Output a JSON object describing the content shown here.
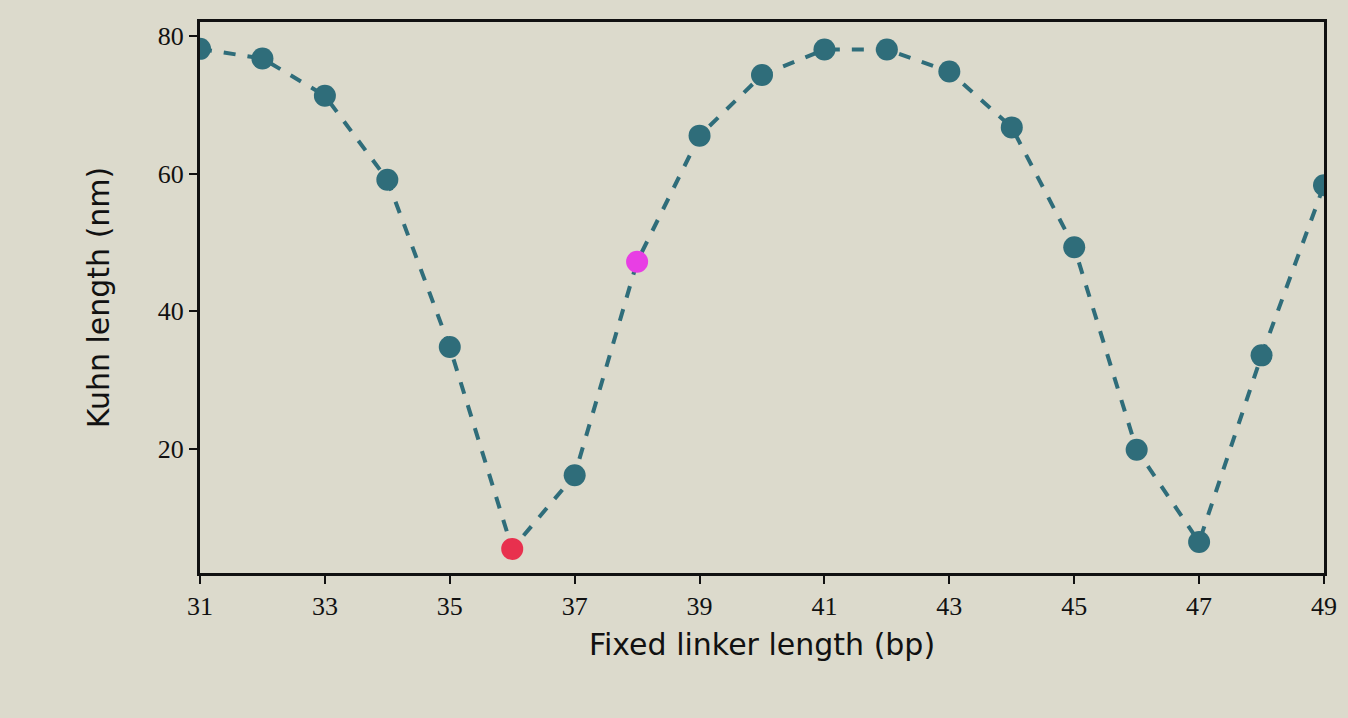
{
  "chart_data": {
    "type": "line",
    "xlabel": "Fixed linker length (bp)",
    "ylabel": "Kuhn length (nm)",
    "x": [
      31,
      32,
      33,
      34,
      35,
      36,
      37,
      38,
      39,
      40,
      41,
      42,
      43,
      44,
      45,
      46,
      47,
      48,
      49
    ],
    "values": [
      78.1,
      76.7,
      71.3,
      59.1,
      34.8,
      5.5,
      16.2,
      47.2,
      65.5,
      74.3,
      78.0,
      78.0,
      74.8,
      66.7,
      49.3,
      19.9,
      6.5,
      33.6,
      58.3
    ],
    "color": "#2f6d7a",
    "colors": [
      "#2f6d7a",
      "#2f6d7a",
      "#2f6d7a",
      "#2f6d7a",
      "#2f6d7a",
      "#e8304e",
      "#2f6d7a",
      "#e83ee4",
      "#2f6d7a",
      "#2f6d7a",
      "#2f6d7a",
      "#2f6d7a",
      "#2f6d7a",
      "#2f6d7a",
      "#2f6d7a",
      "#2f6d7a",
      "#2f6d7a",
      "#2f6d7a",
      "#2f6d7a"
    ],
    "line_style": "dashed",
    "marker": "circle",
    "xlim": [
      31,
      49
    ],
    "xticks": [
      31,
      33,
      35,
      37,
      39,
      41,
      43,
      45,
      47,
      49
    ],
    "ylim": [
      2,
      82
    ],
    "yticks": [
      20,
      40,
      60,
      80
    ],
    "grid": false
  }
}
